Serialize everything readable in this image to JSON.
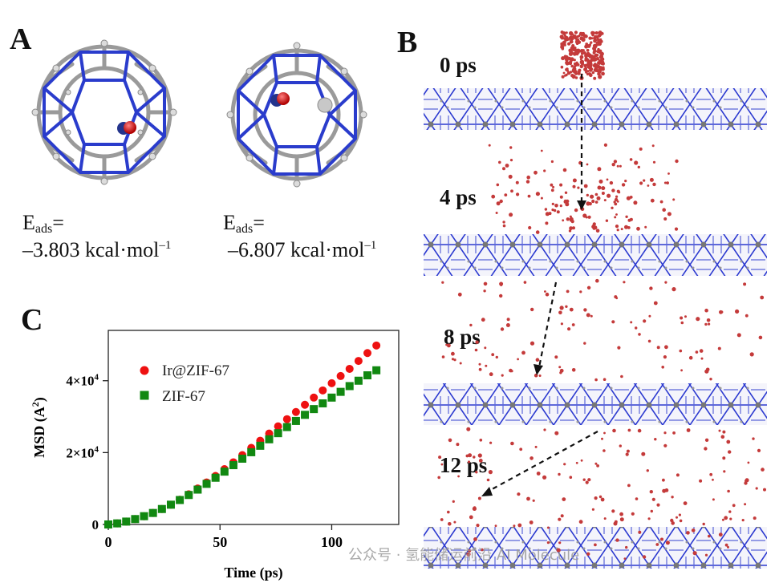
{
  "panels": {
    "a": {
      "letter": "A"
    },
    "b": {
      "letter": "B"
    },
    "c": {
      "letter": "C"
    }
  },
  "panel_a": {
    "energies": [
      {
        "label_main": "E",
        "label_sub": "ads",
        "label_eq": "=",
        "value": "–3.803 kcal·mol",
        "exp": "–1"
      },
      {
        "label_main": "E",
        "label_sub": "ads",
        "label_eq": "=",
        "value": "–6.807 kcal·mol",
        "exp": "–1"
      }
    ]
  },
  "panel_b": {
    "times": [
      "0 ps",
      "4 ps",
      "8 ps",
      "12 ps"
    ]
  },
  "chart_data": {
    "type": "scatter",
    "xlabel": "Time (ps)",
    "ylabel_main": "MSD (A",
    "ylabel_sup": "2",
    "ylabel_end": ")",
    "xlim": [
      0,
      130
    ],
    "ylim": [
      0,
      54000
    ],
    "xticks": [
      0,
      50,
      100
    ],
    "xtick_labels": [
      "0",
      "50",
      "100"
    ],
    "yticks": [
      0,
      20000,
      40000
    ],
    "ytick_labels": [
      {
        "main": "0",
        "exp": ""
      },
      {
        "main": "2×10",
        "exp": "4"
      },
      {
        "main": "4×10",
        "exp": "4"
      }
    ],
    "legend_position": "top-left",
    "series": [
      {
        "name": "Ir@ZIF-67",
        "marker": "circle",
        "color": "#ee1111",
        "x": [
          0,
          4,
          8,
          12,
          16,
          20,
          24,
          28,
          32,
          36,
          40,
          44,
          48,
          52,
          56,
          60,
          64,
          68,
          72,
          76,
          80,
          84,
          88,
          92,
          96,
          100,
          104,
          108,
          112,
          116,
          120
        ],
        "y": [
          0,
          300,
          800,
          1500,
          2300,
          3200,
          4300,
          5500,
          6900,
          8400,
          10000,
          11700,
          13500,
          15400,
          17300,
          19300,
          21300,
          23300,
          25300,
          27300,
          29300,
          31300,
          33300,
          35300,
          37300,
          39300,
          41300,
          43300,
          45500,
          47700,
          49800
        ]
      },
      {
        "name": "ZIF-67",
        "marker": "square",
        "color": "#118811",
        "x": [
          0,
          4,
          8,
          12,
          16,
          20,
          24,
          28,
          32,
          36,
          40,
          44,
          48,
          52,
          56,
          60,
          64,
          68,
          72,
          76,
          80,
          84,
          88,
          92,
          96,
          100,
          104,
          108,
          112,
          116,
          120
        ],
        "y": [
          0,
          300,
          800,
          1500,
          2300,
          3200,
          4300,
          5500,
          6800,
          8200,
          9700,
          11300,
          13000,
          14700,
          16500,
          18300,
          20100,
          21900,
          23700,
          25400,
          27100,
          28800,
          30500,
          32100,
          33700,
          35300,
          36900,
          38500,
          40000,
          41500,
          42900
        ]
      }
    ]
  },
  "watermark": "公众号 · 氢能储运前沿 AI Molecule"
}
